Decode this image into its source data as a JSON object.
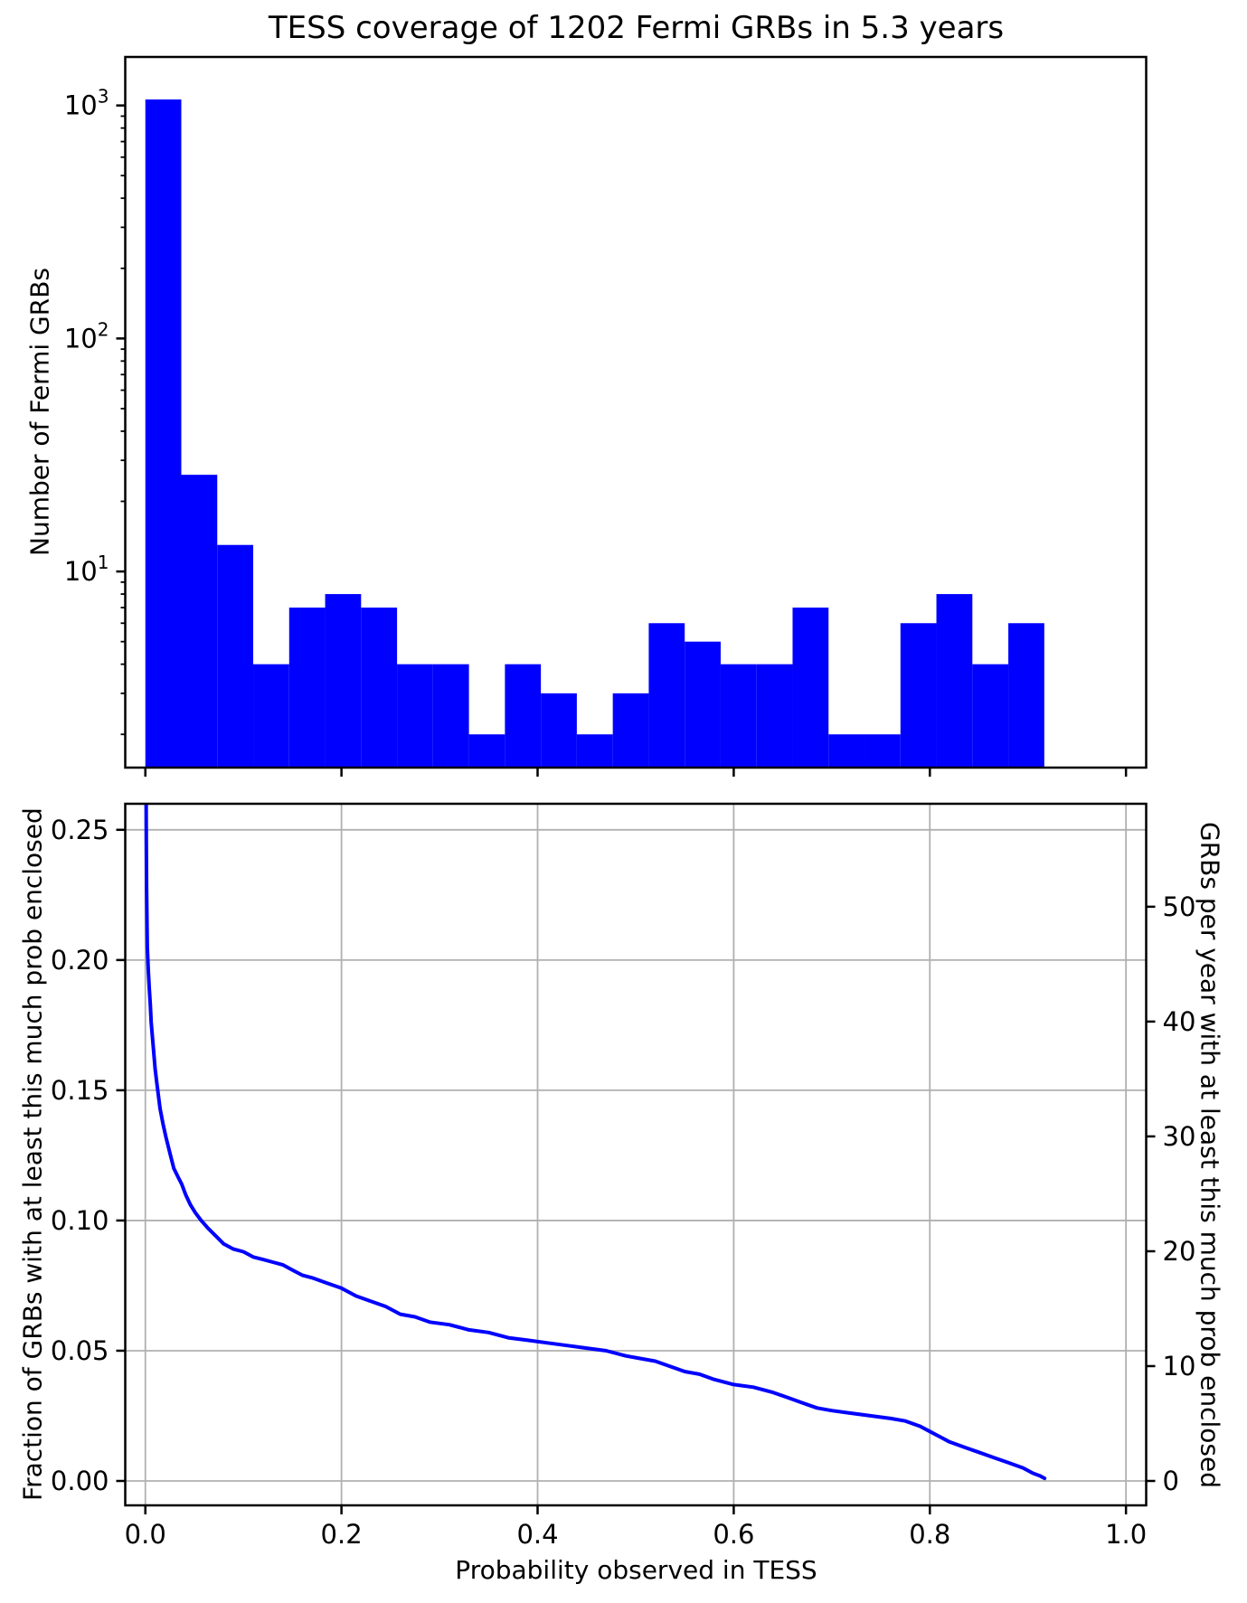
{
  "figure": {
    "title": "TESS coverage of 1202 Fermi GRBs in 5.3 years",
    "background": "#ffffff",
    "accent_color": "#0000ff",
    "grid_color": "#b0b0b0",
    "spine_color": "#000000"
  },
  "chart_data": [
    {
      "type": "bar",
      "title": "TESS coverage of 1202 Fermi GRBs in 5.3 years",
      "ylabel": "Number of Fermi GRBs",
      "yscale": "log",
      "grid": false,
      "bar_color": "#0000ff",
      "xlim": [
        -0.0205,
        1.0206
      ],
      "ylim": [
        1.44,
        1615
      ],
      "bin_start": 0.0,
      "bin_width": 0.036668,
      "values": [
        1061,
        26,
        13,
        4,
        7,
        8,
        7,
        4,
        4,
        2,
        4,
        3,
        2,
        3,
        6,
        5,
        4,
        4,
        7,
        2,
        2,
        6,
        8,
        4,
        6
      ],
      "total_grbs": 1202,
      "ytick_base": "10",
      "ytick_exponents": [
        "1",
        "2",
        "3"
      ],
      "ytick_values": [
        10,
        100,
        1000
      ],
      "xtick_values": [
        0.0,
        0.2,
        0.4,
        0.6,
        0.8,
        1.0
      ]
    },
    {
      "type": "line",
      "xlabel": "Probability observed in TESS",
      "ylabel_left": "Fraction of GRBs with at least this much prob enclosed",
      "ylabel_right": "GRBs per year with at least this much prob enclosed",
      "line_color": "#0000ff",
      "grid": true,
      "legend": "none",
      "xlim": [
        -0.0205,
        1.0411
      ],
      "ylim_left": [
        -0.00937,
        0.26
      ],
      "right_axis_scale_grbs_per_year_per_fraction": 226.79,
      "xtick_labels": [
        "0.0",
        "0.2",
        "0.4",
        "0.6",
        "0.8",
        "1.0"
      ],
      "xtick_values": [
        0.0,
        0.2,
        0.4,
        0.6,
        0.8,
        1.0
      ],
      "ytick_left_labels": [
        "0.00",
        "0.05",
        "0.10",
        "0.15",
        "0.20",
        "0.25"
      ],
      "ytick_left_values": [
        0.0,
        0.05,
        0.1,
        0.15,
        0.2,
        0.25
      ],
      "ytick_right_labels": [
        "0",
        "10",
        "20",
        "30",
        "40",
        "50"
      ],
      "ytick_right_values": [
        0,
        10,
        20,
        30,
        40,
        50
      ],
      "points": [
        [
          0.0008,
          0.262
        ],
        [
          0.001,
          0.245
        ],
        [
          0.0013,
          0.228
        ],
        [
          0.0017,
          0.213
        ],
        [
          0.002,
          0.205
        ],
        [
          0.003,
          0.196
        ],
        [
          0.004,
          0.189
        ],
        [
          0.005,
          0.183
        ],
        [
          0.006,
          0.176
        ],
        [
          0.008,
          0.167
        ],
        [
          0.01,
          0.158
        ],
        [
          0.012,
          0.152
        ],
        [
          0.015,
          0.143
        ],
        [
          0.018,
          0.137
        ],
        [
          0.021,
          0.132
        ],
        [
          0.025,
          0.126
        ],
        [
          0.029,
          0.12
        ],
        [
          0.033,
          0.117
        ],
        [
          0.037,
          0.114
        ],
        [
          0.041,
          0.11
        ],
        [
          0.046,
          0.106
        ],
        [
          0.051,
          0.103
        ],
        [
          0.057,
          0.1
        ],
        [
          0.064,
          0.097
        ],
        [
          0.072,
          0.094
        ],
        [
          0.08,
          0.091
        ],
        [
          0.09,
          0.089
        ],
        [
          0.1,
          0.088
        ],
        [
          0.11,
          0.086
        ],
        [
          0.12,
          0.085
        ],
        [
          0.13,
          0.084
        ],
        [
          0.14,
          0.083
        ],
        [
          0.15,
          0.081
        ],
        [
          0.16,
          0.079
        ],
        [
          0.17,
          0.078
        ],
        [
          0.185,
          0.076
        ],
        [
          0.2,
          0.074
        ],
        [
          0.215,
          0.071
        ],
        [
          0.23,
          0.069
        ],
        [
          0.245,
          0.067
        ],
        [
          0.26,
          0.064
        ],
        [
          0.275,
          0.063
        ],
        [
          0.29,
          0.061
        ],
        [
          0.31,
          0.06
        ],
        [
          0.33,
          0.058
        ],
        [
          0.35,
          0.057
        ],
        [
          0.37,
          0.055
        ],
        [
          0.39,
          0.054
        ],
        [
          0.41,
          0.053
        ],
        [
          0.43,
          0.052
        ],
        [
          0.45,
          0.051
        ],
        [
          0.47,
          0.05
        ],
        [
          0.49,
          0.048
        ],
        [
          0.505,
          0.047
        ],
        [
          0.52,
          0.046
        ],
        [
          0.535,
          0.044
        ],
        [
          0.55,
          0.042
        ],
        [
          0.565,
          0.041
        ],
        [
          0.58,
          0.039
        ],
        [
          0.6,
          0.037
        ],
        [
          0.62,
          0.036
        ],
        [
          0.64,
          0.034
        ],
        [
          0.655,
          0.032
        ],
        [
          0.67,
          0.03
        ],
        [
          0.685,
          0.028
        ],
        [
          0.7,
          0.027
        ],
        [
          0.72,
          0.026
        ],
        [
          0.74,
          0.025
        ],
        [
          0.76,
          0.024
        ],
        [
          0.775,
          0.023
        ],
        [
          0.79,
          0.021
        ],
        [
          0.8,
          0.019
        ],
        [
          0.81,
          0.017
        ],
        [
          0.82,
          0.015
        ],
        [
          0.835,
          0.013
        ],
        [
          0.85,
          0.011
        ],
        [
          0.865,
          0.009
        ],
        [
          0.88,
          0.007
        ],
        [
          0.895,
          0.005
        ],
        [
          0.905,
          0.003
        ],
        [
          0.912,
          0.002
        ],
        [
          0.917,
          0.001
        ]
      ]
    }
  ]
}
